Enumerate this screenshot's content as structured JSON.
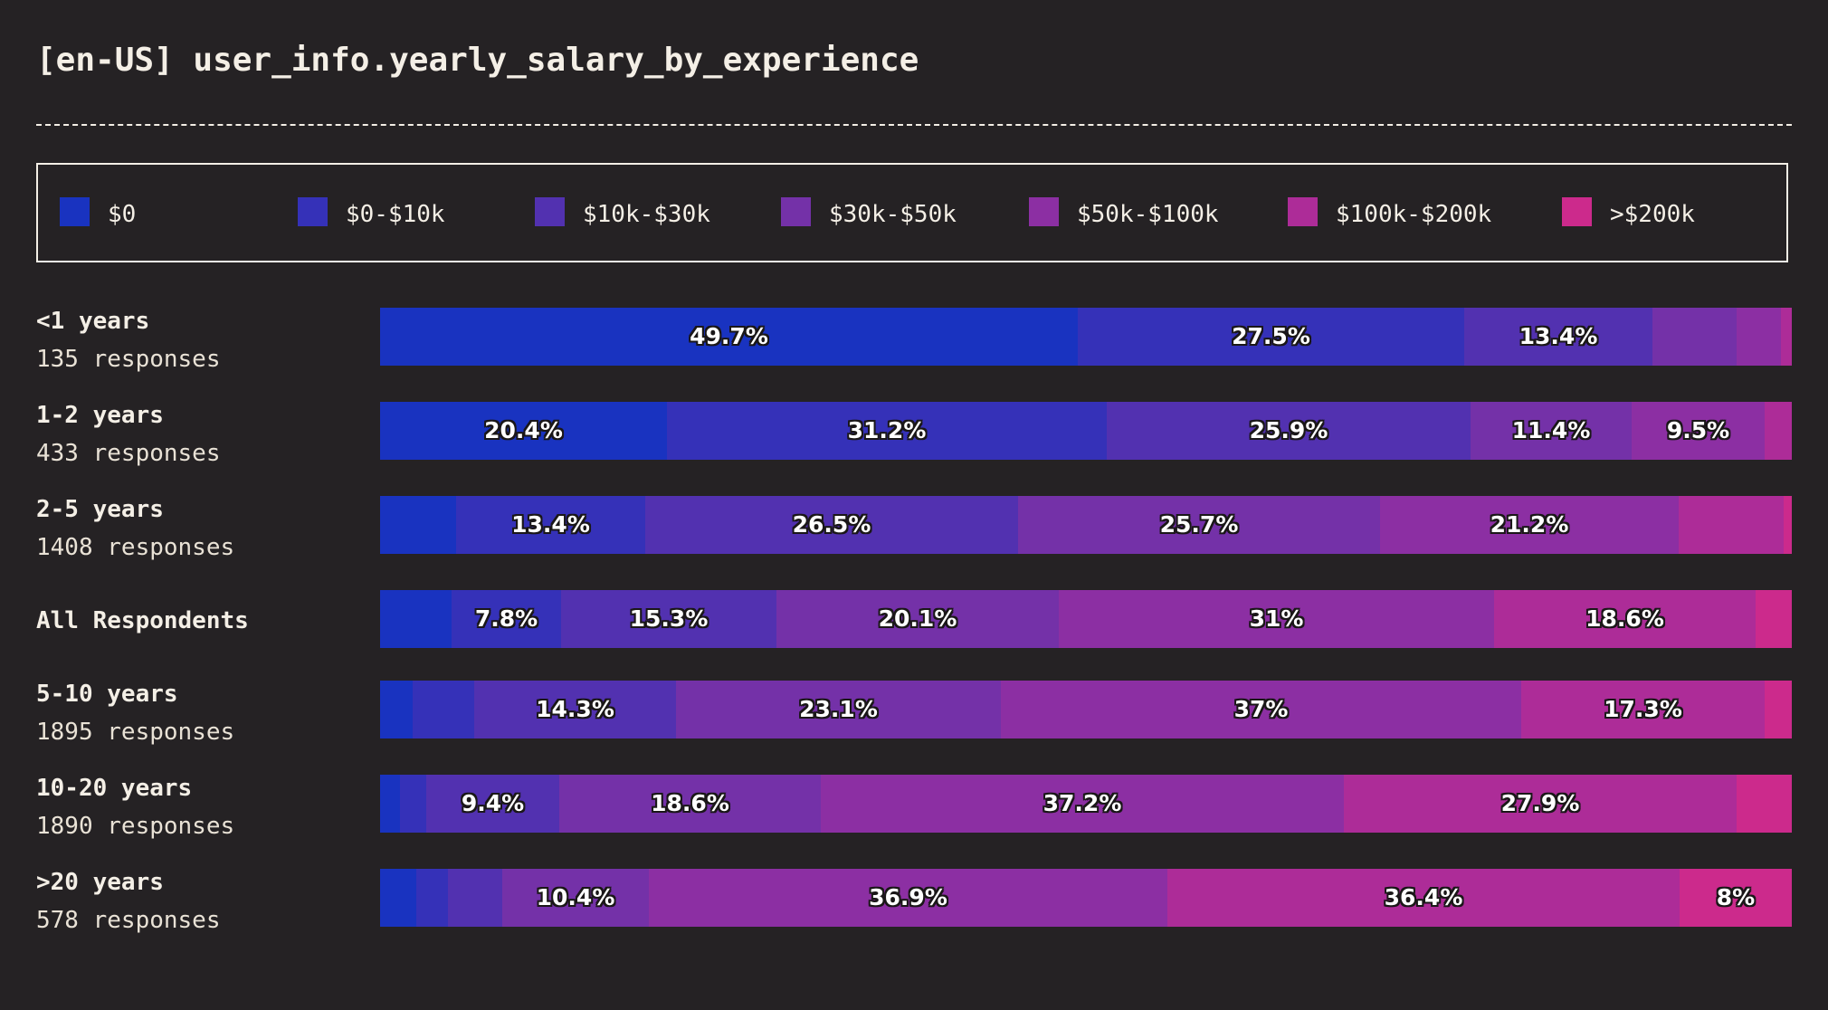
{
  "chart_data": {
    "type": "bar",
    "orientation": "horizontal",
    "stacked": true,
    "normalized": true,
    "title": "[en-US] user_info.yearly_salary_by_experience",
    "unit": "%",
    "legend": {
      "placement": "top",
      "items": [
        {
          "label": "$0",
          "color": "#1933c0"
        },
        {
          "label": "$0-$10k",
          "color": "#3531b8"
        },
        {
          "label": "$10k-$30k",
          "color": "#5231b0"
        },
        {
          "label": "$30k-$50k",
          "color": "#7431a8"
        },
        {
          "label": "$50k-$100k",
          "color": "#8c2fa3"
        },
        {
          "label": "$100k-$200k",
          "color": "#ad2c98"
        },
        {
          "label": ">$200k",
          "color": "#cc2a8c"
        }
      ]
    },
    "series_names": [
      "$0",
      "$0-$10k",
      "$10k-$30k",
      "$30k-$50k",
      "$50k-$100k",
      "$100k-$200k",
      ">$200k"
    ],
    "rows": [
      {
        "name": "<1 years",
        "count": "135 responses",
        "values": [
          49.7,
          27.5,
          13.4,
          6.0,
          3.1,
          0.8,
          0.0
        ],
        "labels": [
          "49.7%",
          "27.5%",
          "13.4%",
          "",
          "",
          "",
          ""
        ]
      },
      {
        "name": "1-2 years",
        "count": "433 responses",
        "values": [
          20.4,
          31.2,
          25.9,
          11.4,
          9.5,
          1.9,
          0.0
        ],
        "labels": [
          "20.4%",
          "31.2%",
          "25.9%",
          "11.4%",
          "9.5%",
          "",
          ""
        ]
      },
      {
        "name": "2-5 years",
        "count": "1408 responses",
        "values": [
          5.4,
          13.4,
          26.5,
          25.7,
          21.2,
          7.4,
          0.6
        ],
        "labels": [
          "",
          "13.4%",
          "26.5%",
          "25.7%",
          "21.2%",
          "",
          ""
        ]
      },
      {
        "name": "All Respondents",
        "count": "",
        "values": [
          5.1,
          7.8,
          15.3,
          20.1,
          31.0,
          18.6,
          2.6
        ],
        "labels": [
          "",
          "7.8%",
          "15.3%",
          "20.1%",
          "31%",
          "18.6%",
          ""
        ]
      },
      {
        "name": "5-10 years",
        "count": "1895 responses",
        "values": [
          2.3,
          4.4,
          14.3,
          23.1,
          37.0,
          17.3,
          1.9
        ],
        "labels": [
          "",
          "",
          "14.3%",
          "23.1%",
          "37%",
          "17.3%",
          ""
        ]
      },
      {
        "name": "10-20 years",
        "count": "1890 responses",
        "values": [
          1.4,
          1.9,
          9.4,
          18.6,
          37.2,
          27.9,
          3.9
        ],
        "labels": [
          "",
          "",
          "9.4%",
          "18.6%",
          "37.2%",
          "27.9%",
          ""
        ]
      },
      {
        "name": ">20 years",
        "count": "578 responses",
        "values": [
          2.6,
          2.2,
          3.9,
          10.4,
          36.9,
          36.4,
          8.0
        ],
        "labels": [
          "",
          "",
          "",
          "10.4%",
          "36.9%",
          "36.4%",
          "8%"
        ]
      }
    ]
  }
}
